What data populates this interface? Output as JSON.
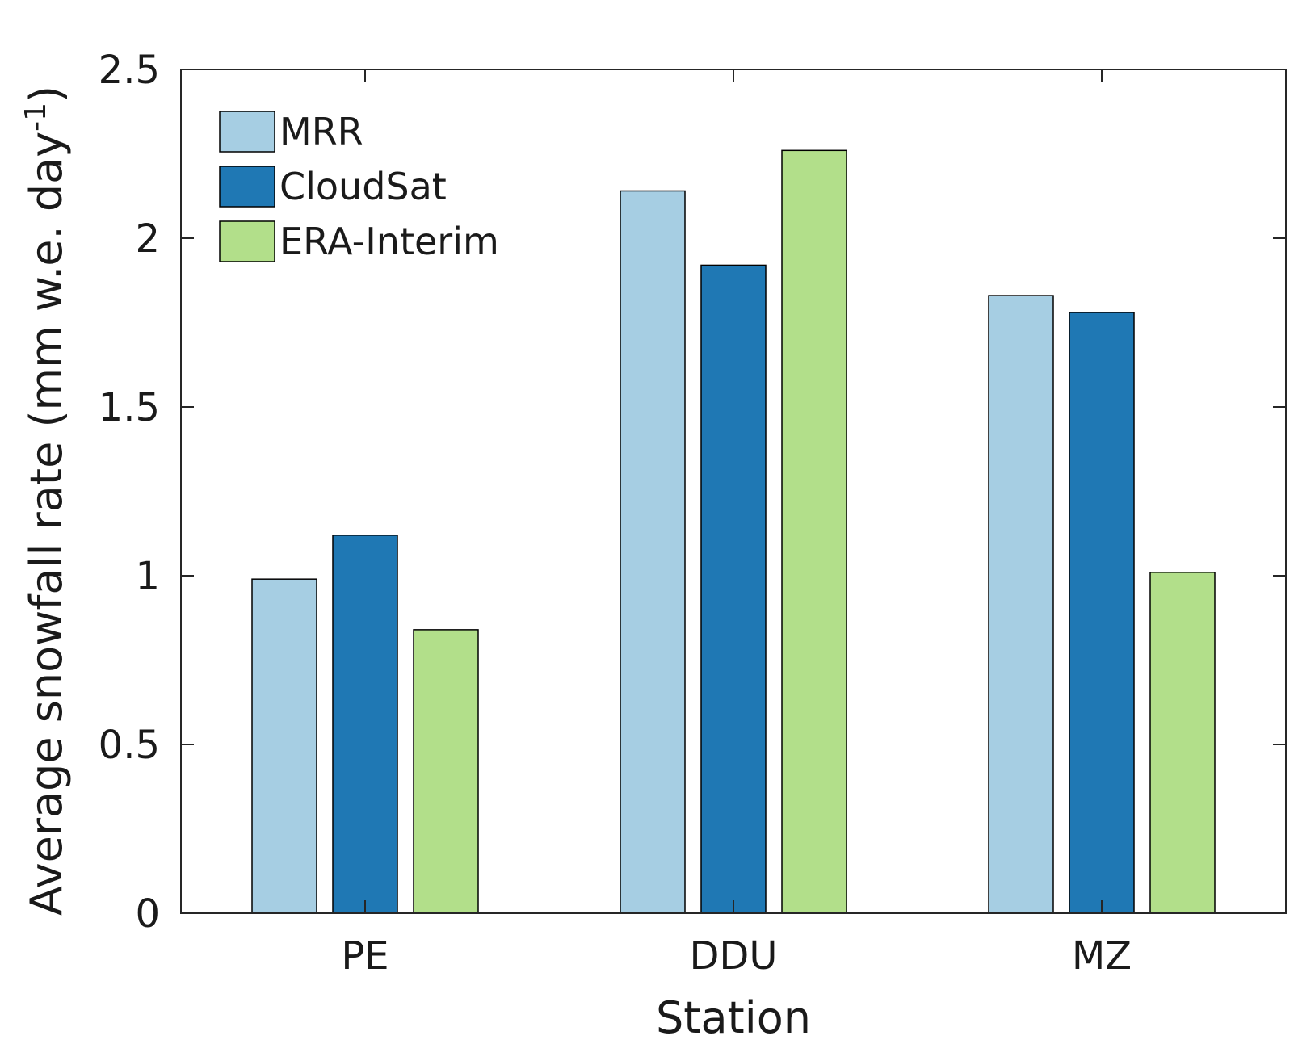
{
  "chart_data": {
    "type": "bar",
    "categories": [
      "PE",
      "DDU",
      "MZ"
    ],
    "series": [
      {
        "name": "MRR",
        "values": [
          0.99,
          2.14,
          1.83
        ],
        "color": "#a6cee3"
      },
      {
        "name": "CloudSat",
        "values": [
          1.12,
          1.92,
          1.78
        ],
        "color": "#1f78b4"
      },
      {
        "name": "ERA-Interim",
        "values": [
          0.84,
          2.26,
          1.01
        ],
        "color": "#b2df8a"
      }
    ],
    "xlabel": "Station",
    "ylabel": "Average snowfall rate (mm w.e. day",
    "ylabel_superscript": "-1",
    "ylabel_close": ")",
    "ylim": [
      0,
      2.5
    ],
    "yticks": [
      0,
      0.5,
      1,
      1.5,
      2,
      2.5
    ],
    "ytick_labels": [
      "0",
      "0.5",
      "1",
      "1.5",
      "2",
      "2.5"
    ],
    "grid": false,
    "legend_position": "top-left"
  }
}
